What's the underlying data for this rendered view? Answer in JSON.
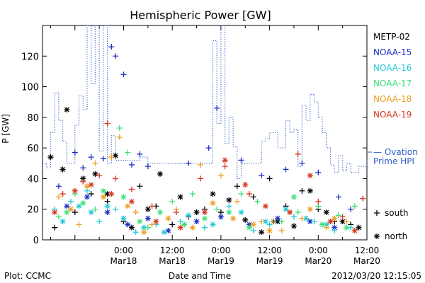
{
  "chart_data": {
    "type": "scatter",
    "title": "Hemispheric Power [GW]",
    "ylabel": "P [GW]",
    "xlabel": "Date and Time",
    "ylim": [
      0,
      140
    ],
    "y_ticks": [
      0,
      20,
      40,
      60,
      80,
      100,
      120
    ],
    "x_unit": "hours from 2012-03-17 00:00",
    "xlim": [
      4,
      84
    ],
    "x_ticks": [
      {
        "x": 24,
        "line1": "0:00",
        "line2": "Mar18"
      },
      {
        "x": 36,
        "line1": "12:00",
        "line2": "Mar18"
      },
      {
        "x": 48,
        "line1": "0:00",
        "line2": "Mar19"
      },
      {
        "x": 60,
        "line1": "12:00",
        "line2": "Mar19"
      },
      {
        "x": 72,
        "line1": "0:00",
        "line2": "Mar20"
      },
      {
        "x": 84,
        "line1": "12:00",
        "line2": "Mar20"
      }
    ],
    "series": [
      {
        "name": "METP-02",
        "color": "#000000",
        "south": [
          [
            7,
            8
          ],
          [
            12,
            18
          ],
          [
            16,
            30
          ],
          [
            20,
            25
          ],
          [
            24,
            12
          ],
          [
            28,
            35
          ],
          [
            32,
            22
          ],
          [
            36,
            10
          ],
          [
            40,
            15
          ],
          [
            44,
            20
          ],
          [
            48,
            18
          ],
          [
            52,
            35
          ],
          [
            56,
            28
          ],
          [
            60,
            40
          ],
          [
            64,
            22
          ],
          [
            68,
            32
          ],
          [
            72,
            20
          ],
          [
            76,
            12
          ],
          [
            80,
            10
          ]
        ],
        "north": [
          [
            6,
            54
          ],
          [
            9,
            46
          ],
          [
            10,
            85
          ],
          [
            14,
            40
          ],
          [
            17,
            43
          ],
          [
            20,
            30
          ],
          [
            22,
            55
          ],
          [
            26,
            8
          ],
          [
            30,
            20
          ],
          [
            33,
            43
          ],
          [
            38,
            28
          ],
          [
            42,
            18
          ],
          [
            46,
            30
          ],
          [
            50,
            26
          ],
          [
            54,
            13
          ],
          [
            58,
            5
          ],
          [
            62,
            12
          ],
          [
            66,
            9
          ],
          [
            70,
            32
          ],
          [
            74,
            18
          ],
          [
            78,
            12
          ],
          [
            82,
            8
          ]
        ]
      },
      {
        "name": "NOAA-15",
        "color": "#1c2fc4",
        "south": [
          [
            8,
            35
          ],
          [
            12,
            57
          ],
          [
            14,
            47
          ],
          [
            16,
            54
          ],
          [
            19,
            53
          ],
          [
            21,
            126
          ],
          [
            22,
            120
          ],
          [
            24,
            108
          ],
          [
            26,
            49
          ],
          [
            28,
            56
          ],
          [
            30,
            48
          ],
          [
            40,
            50
          ],
          [
            45,
            60
          ],
          [
            47,
            86
          ],
          [
            53,
            52
          ],
          [
            58,
            42
          ],
          [
            64,
            46
          ],
          [
            68,
            50
          ],
          [
            72,
            44
          ],
          [
            77,
            28
          ],
          [
            80,
            20
          ]
        ],
        "north": [
          [
            10,
            22
          ],
          [
            15,
            28
          ],
          [
            20,
            18
          ],
          [
            25,
            10
          ],
          [
            30,
            14
          ],
          [
            35,
            6
          ],
          [
            42,
            12
          ],
          [
            48,
            15
          ],
          [
            55,
            10
          ],
          [
            62,
            14
          ],
          [
            70,
            12
          ],
          [
            76,
            8
          ]
        ]
      },
      {
        "name": "NOAA-16",
        "color": "#20c8d8",
        "south": [
          [
            7,
            20
          ],
          [
            11,
            25
          ],
          [
            15,
            32
          ],
          [
            18,
            12
          ],
          [
            22,
            20
          ],
          [
            27,
            5
          ],
          [
            32,
            10
          ],
          [
            38,
            12
          ],
          [
            44,
            8
          ],
          [
            50,
            22
          ],
          [
            56,
            6
          ],
          [
            60,
            10
          ],
          [
            66,
            15
          ],
          [
            71,
            12
          ],
          [
            76,
            6
          ],
          [
            80,
            8
          ]
        ],
        "north": [
          [
            9,
            12
          ],
          [
            13,
            22
          ],
          [
            16,
            18
          ],
          [
            20,
            22
          ],
          [
            24,
            14
          ],
          [
            29,
            8
          ],
          [
            34,
            5
          ],
          [
            40,
            16
          ],
          [
            46,
            10
          ],
          [
            53,
            18
          ],
          [
            59,
            12
          ],
          [
            64,
            20
          ],
          [
            69,
            14
          ],
          [
            74,
            10
          ]
        ]
      },
      {
        "name": "NOAA-17",
        "color": "#3ce07a",
        "south": [
          [
            8,
            15
          ],
          [
            12,
            30
          ],
          [
            17,
            20
          ],
          [
            23,
            73
          ],
          [
            25,
            57
          ],
          [
            30,
            8
          ],
          [
            36,
            25
          ],
          [
            41,
            30
          ],
          [
            47,
            20
          ],
          [
            53,
            30
          ],
          [
            57,
            25
          ],
          [
            63,
            12
          ],
          [
            67,
            18
          ],
          [
            72,
            22
          ],
          [
            77,
            16
          ],
          [
            81,
            22
          ]
        ],
        "north": [
          [
            10,
            18
          ],
          [
            14,
            24
          ],
          [
            19,
            32
          ],
          [
            24,
            28
          ],
          [
            28,
            12
          ],
          [
            33,
            18
          ],
          [
            39,
            10
          ],
          [
            44,
            14
          ],
          [
            50,
            18
          ],
          [
            55,
            8
          ],
          [
            61,
            12
          ],
          [
            66,
            28
          ],
          [
            73,
            10
          ],
          [
            79,
            8
          ]
        ]
      },
      {
        "name": "NOAA-18",
        "color": "#f0a020",
        "south": [
          [
            8,
            28
          ],
          [
            13,
            10
          ],
          [
            17,
            50
          ],
          [
            21,
            54
          ],
          [
            23,
            67
          ],
          [
            27,
            18
          ],
          [
            31,
            10
          ],
          [
            37,
            20
          ],
          [
            43,
            49
          ],
          [
            48,
            42
          ],
          [
            52,
            25
          ],
          [
            58,
            12
          ],
          [
            63,
            6
          ],
          [
            68,
            14
          ],
          [
            74,
            8
          ],
          [
            79,
            12
          ]
        ],
        "north": [
          [
            11,
            20
          ],
          [
            15,
            35
          ],
          [
            19,
            28
          ],
          [
            25,
            22
          ],
          [
            29,
            5
          ],
          [
            35,
            14
          ],
          [
            41,
            8
          ],
          [
            46,
            24
          ],
          [
            51,
            14
          ],
          [
            56,
            10
          ],
          [
            60,
            6
          ],
          [
            65,
            18
          ],
          [
            70,
            20
          ],
          [
            76,
            14
          ]
        ]
      },
      {
        "name": "NOAA-19",
        "color": "#d8341e",
        "south": [
          [
            9,
            30
          ],
          [
            14,
            38
          ],
          [
            18,
            42
          ],
          [
            20,
            76
          ],
          [
            22,
            40
          ],
          [
            26,
            33
          ],
          [
            31,
            22
          ],
          [
            37,
            18
          ],
          [
            43,
            40
          ],
          [
            49,
            48
          ],
          [
            55,
            30
          ],
          [
            61,
            12
          ],
          [
            67,
            56
          ],
          [
            72,
            25
          ],
          [
            78,
            15
          ],
          [
            83,
            27
          ]
        ],
        "north": [
          [
            7,
            18
          ],
          [
            12,
            32
          ],
          [
            16,
            36
          ],
          [
            21,
            30
          ],
          [
            26,
            25
          ],
          [
            32,
            12
          ],
          [
            38,
            8
          ],
          [
            44,
            18
          ],
          [
            49,
            52
          ],
          [
            54,
            36
          ],
          [
            59,
            22
          ],
          [
            65,
            18
          ],
          [
            70,
            42
          ],
          [
            75,
            12
          ],
          [
            81,
            6
          ]
        ]
      }
    ],
    "ovation": {
      "name_line1": "— Ovation",
      "name_line2": "Prime HPI",
      "color": "#2f5fc8",
      "points": [
        [
          4,
          50
        ],
        [
          5,
          50
        ],
        [
          5,
          47
        ],
        [
          6,
          47
        ],
        [
          6,
          70
        ],
        [
          7,
          70
        ],
        [
          7,
          96
        ],
        [
          8,
          96
        ],
        [
          8,
          78
        ],
        [
          9,
          78
        ],
        [
          9,
          64
        ],
        [
          10,
          64
        ],
        [
          10,
          50
        ],
        [
          12,
          50
        ],
        [
          12,
          75
        ],
        [
          13,
          75
        ],
        [
          13,
          94
        ],
        [
          14,
          94
        ],
        [
          14,
          85
        ],
        [
          15,
          85
        ],
        [
          15,
          140
        ],
        [
          16,
          140
        ],
        [
          16,
          102
        ],
        [
          17,
          102
        ],
        [
          17,
          140
        ],
        [
          18,
          140
        ],
        [
          18,
          58
        ],
        [
          19,
          58
        ],
        [
          19,
          140
        ],
        [
          20,
          140
        ],
        [
          20,
          50
        ],
        [
          21,
          50
        ],
        [
          21,
          68
        ],
        [
          22,
          68
        ],
        [
          22,
          52
        ],
        [
          28,
          52
        ],
        [
          28,
          54
        ],
        [
          30,
          54
        ],
        [
          30,
          50
        ],
        [
          46,
          50
        ],
        [
          46,
          130
        ],
        [
          47,
          130
        ],
        [
          47,
          76
        ],
        [
          48,
          76
        ],
        [
          48,
          140
        ],
        [
          49,
          140
        ],
        [
          49,
          63
        ],
        [
          50,
          63
        ],
        [
          50,
          80
        ],
        [
          51,
          80
        ],
        [
          51,
          61
        ],
        [
          52,
          61
        ],
        [
          52,
          40
        ],
        [
          53,
          40
        ],
        [
          53,
          50
        ],
        [
          58,
          50
        ],
        [
          58,
          64
        ],
        [
          59,
          64
        ],
        [
          59,
          66
        ],
        [
          60,
          66
        ],
        [
          60,
          70
        ],
        [
          62,
          70
        ],
        [
          62,
          60
        ],
        [
          64,
          60
        ],
        [
          64,
          78
        ],
        [
          65,
          78
        ],
        [
          65,
          70
        ],
        [
          66,
          70
        ],
        [
          66,
          72
        ],
        [
          67,
          72
        ],
        [
          67,
          48
        ],
        [
          68,
          48
        ],
        [
          68,
          88
        ],
        [
          69,
          88
        ],
        [
          69,
          78
        ],
        [
          70,
          78
        ],
        [
          70,
          95
        ],
        [
          71,
          95
        ],
        [
          71,
          90
        ],
        [
          72,
          90
        ],
        [
          72,
          80
        ],
        [
          73,
          80
        ],
        [
          73,
          70
        ],
        [
          74,
          70
        ],
        [
          74,
          60
        ],
        [
          75,
          60
        ],
        [
          75,
          49
        ],
        [
          76,
          49
        ],
        [
          76,
          44
        ],
        [
          77,
          44
        ],
        [
          77,
          55
        ],
        [
          78,
          55
        ],
        [
          78,
          45
        ],
        [
          79,
          45
        ],
        [
          79,
          50
        ],
        [
          80,
          50
        ],
        [
          80,
          44
        ],
        [
          82,
          44
        ],
        [
          82,
          48
        ],
        [
          84,
          48
        ],
        [
          84,
          53
        ]
      ]
    },
    "legend_markers": [
      {
        "symbol": "+",
        "label": "south"
      },
      {
        "symbol": "*",
        "label": "north"
      }
    ]
  },
  "footer": {
    "plot_credit": "Plot: CCMC",
    "timestamp": "2012/03/20 12:15:05"
  }
}
